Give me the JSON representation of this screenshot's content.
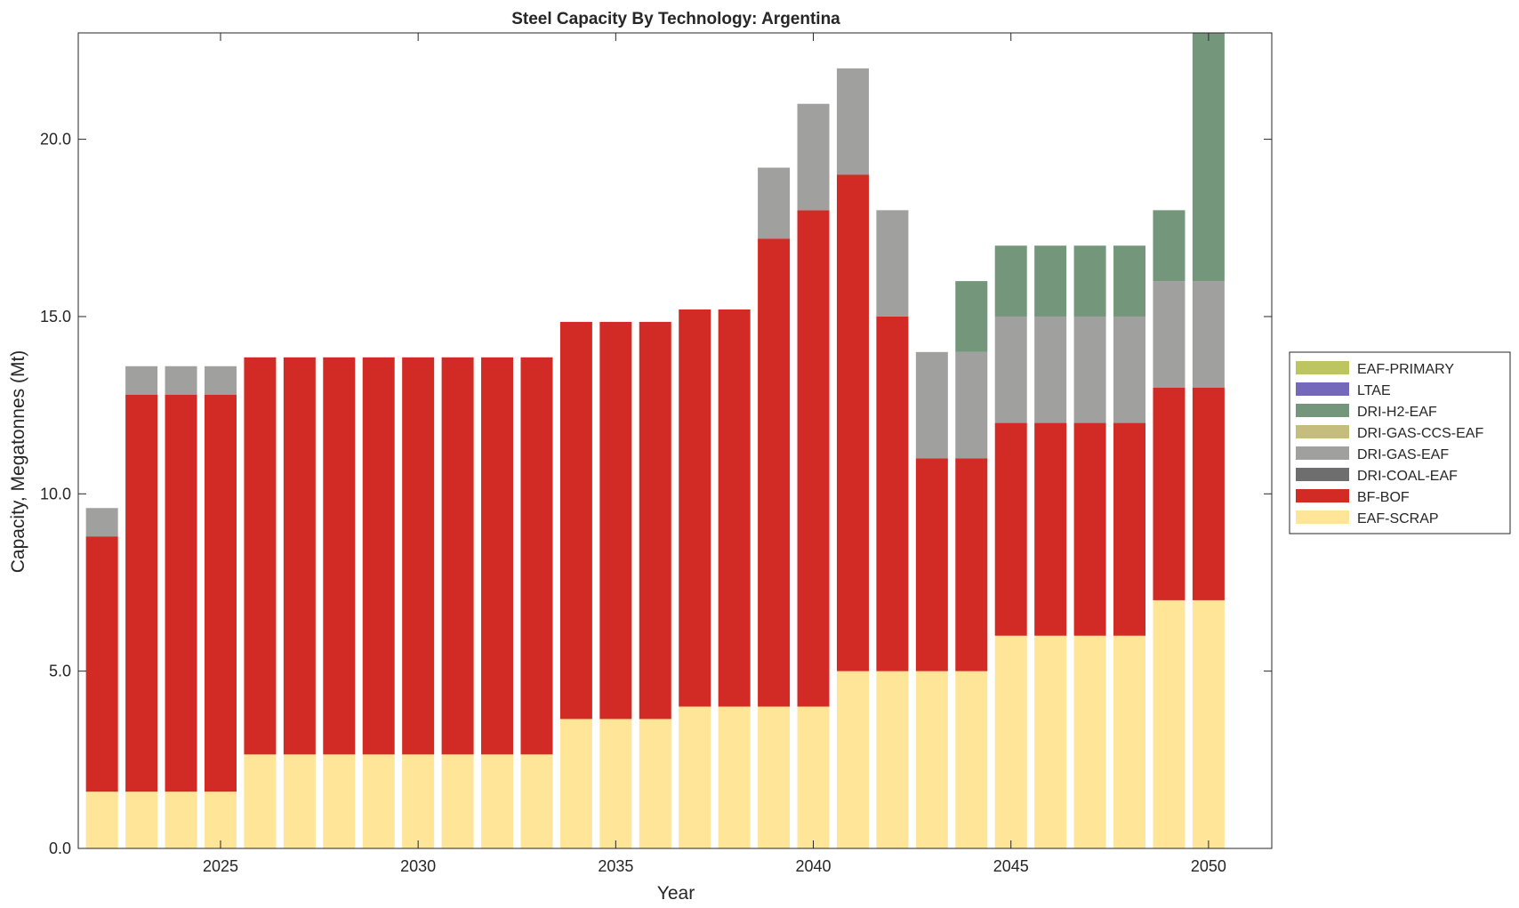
{
  "chart_data": {
    "type": "bar",
    "stacked": true,
    "title": "Steel Capacity By Technology: Argentina",
    "xlabel": "Year",
    "ylabel": "Capacity, Megatonnes (Mt)",
    "xlim": [
      2021.4,
      2051.6
    ],
    "ylim": [
      0,
      23
    ],
    "xticks": [
      2025,
      2030,
      2035,
      2040,
      2045,
      2050
    ],
    "xtick_labels": [
      "2025",
      "2030",
      "2035",
      "2040",
      "2045",
      "2050"
    ],
    "yticks": [
      0,
      5,
      10,
      15,
      20
    ],
    "ytick_labels": [
      "0.0",
      "5.0",
      "10.0",
      "15.0",
      "20.0"
    ],
    "legend_position": "outside-right",
    "categories": [
      2022,
      2023,
      2024,
      2025,
      2026,
      2027,
      2028,
      2029,
      2030,
      2031,
      2032,
      2033,
      2034,
      2035,
      2036,
      2037,
      2038,
      2039,
      2040,
      2041,
      2042,
      2043,
      2044,
      2045,
      2046,
      2047,
      2048,
      2049,
      2050
    ],
    "series": [
      {
        "name": "EAF-SCRAP",
        "color": "#FFE597",
        "values": [
          1.6,
          1.6,
          1.6,
          1.6,
          2.65,
          2.65,
          2.65,
          2.65,
          2.65,
          2.65,
          2.65,
          2.65,
          3.65,
          3.65,
          3.65,
          4.0,
          4.0,
          4.0,
          4.0,
          5.0,
          5.0,
          5.0,
          5.0,
          6.0,
          6.0,
          6.0,
          6.0,
          7.0,
          7.0
        ]
      },
      {
        "name": "BF-BOF",
        "color": "#D22B25",
        "values": [
          7.2,
          11.2,
          11.2,
          11.2,
          11.2,
          11.2,
          11.2,
          11.2,
          11.2,
          11.2,
          11.2,
          11.2,
          11.2,
          11.2,
          11.2,
          11.2,
          11.2,
          13.2,
          14.0,
          14.0,
          10.0,
          6.0,
          6.0,
          6.0,
          6.0,
          6.0,
          6.0,
          6.0,
          6.0
        ]
      },
      {
        "name": "DRI-COAL-EAF",
        "color": "#6E6E6E",
        "values": [
          0,
          0,
          0,
          0,
          0,
          0,
          0,
          0,
          0,
          0,
          0,
          0,
          0,
          0,
          0,
          0,
          0,
          0,
          0,
          0,
          0,
          0,
          0,
          0,
          0,
          0,
          0,
          0,
          0
        ]
      },
      {
        "name": "DRI-GAS-EAF",
        "color": "#A0A09F",
        "values": [
          0.8,
          0.8,
          0.8,
          0.8,
          0,
          0,
          0,
          0,
          0,
          0,
          0,
          0,
          0,
          0,
          0,
          0,
          0,
          2.0,
          3.0,
          3.0,
          3.0,
          3.0,
          3.0,
          3.0,
          3.0,
          3.0,
          3.0,
          3.0,
          3.0
        ]
      },
      {
        "name": "DRI-GAS-CCS-EAF",
        "color": "#C4BD7E",
        "values": [
          0,
          0,
          0,
          0,
          0,
          0,
          0,
          0,
          0,
          0,
          0,
          0,
          0,
          0,
          0,
          0,
          0,
          0,
          0,
          0,
          0,
          0,
          0,
          0,
          0,
          0,
          0,
          0,
          0
        ]
      },
      {
        "name": "DRI-H2-EAF",
        "color": "#74977B",
        "values": [
          0,
          0,
          0,
          0,
          0,
          0,
          0,
          0,
          0,
          0,
          0,
          0,
          0,
          0,
          0,
          0,
          0,
          0,
          0,
          0,
          0,
          0,
          2.0,
          2.0,
          2.0,
          2.0,
          2.0,
          2.0,
          7.0
        ]
      },
      {
        "name": "LTAE",
        "color": "#7468BA",
        "values": [
          0,
          0,
          0,
          0,
          0,
          0,
          0,
          0,
          0,
          0,
          0,
          0,
          0,
          0,
          0,
          0,
          0,
          0,
          0,
          0,
          0,
          0,
          0,
          0,
          0,
          0,
          0,
          0,
          0
        ]
      },
      {
        "name": "EAF-PRIMARY",
        "color": "#BCC560",
        "values": [
          0,
          0,
          0,
          0,
          0,
          0,
          0,
          0,
          0,
          0,
          0,
          0,
          0,
          0,
          0,
          0,
          0,
          0,
          0,
          0,
          0,
          0,
          0,
          0,
          0,
          0,
          0,
          0,
          0
        ]
      }
    ],
    "legend_order": [
      "EAF-PRIMARY",
      "LTAE",
      "DRI-H2-EAF",
      "DRI-GAS-CCS-EAF",
      "DRI-GAS-EAF",
      "DRI-COAL-EAF",
      "BF-BOF",
      "EAF-SCRAP"
    ]
  }
}
